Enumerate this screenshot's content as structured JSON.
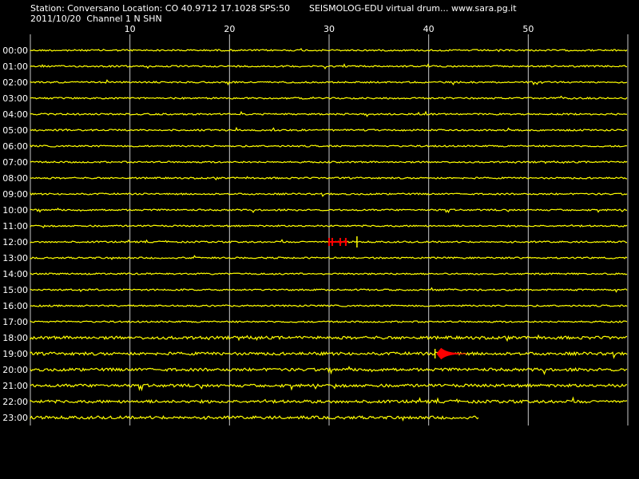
{
  "header": {
    "station_line": "Station: Conversano Location: CO 40.9712 17.1028 SPS:50",
    "title": "SEISMOLOG-EDU virtual drum... www.sara.pg.it",
    "date_line": "2011/10/20  Channel 1 N SHN"
  },
  "colors": {
    "background": "#000000",
    "trace": "#ffff00",
    "event": "#ff0000",
    "grid": "#c8c8c8",
    "text": "#ffffff"
  },
  "minute_axis": {
    "ticks": [
      "10",
      "20",
      "30",
      "40",
      "50"
    ]
  },
  "hour_rows": [
    "00:00",
    "01:00",
    "02:00",
    "03:00",
    "04:00",
    "05:00",
    "06:00",
    "07:00",
    "08:00",
    "09:00",
    "10:00",
    "11:00",
    "12:00",
    "13:00",
    "14:00",
    "15:00",
    "16:00",
    "17:00",
    "18:00",
    "19:00",
    "20:00",
    "21:00",
    "22:00",
    "23:00"
  ],
  "last_row_end_minute": 45,
  "events": [
    {
      "hour_row": "12:00",
      "minute_start": 30.0,
      "minute_end": 32.8,
      "kind": "pick-marks"
    },
    {
      "hour_row": "19:00",
      "minute_start": 40.8,
      "minute_end": 43.8,
      "kind": "earthquake"
    }
  ]
}
